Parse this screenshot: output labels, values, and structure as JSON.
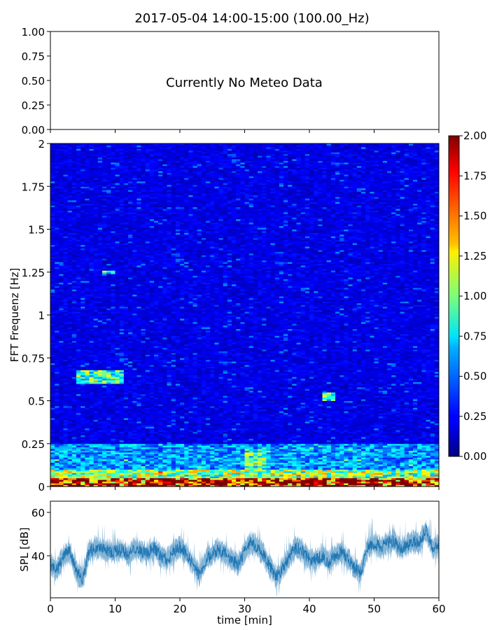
{
  "title": "2017-05-04 14:00-15:00 (100.00_Hz)",
  "chart_data": [
    {
      "type": "line",
      "panel": "meteo",
      "annotation": "Currently No Meteo Data",
      "ylim": [
        0,
        1
      ],
      "yticks": [
        "0.00",
        "0.25",
        "0.50",
        "0.75",
        "1.00"
      ],
      "xlim": [
        0,
        60
      ],
      "series": []
    },
    {
      "type": "heatmap",
      "panel": "spectrogram",
      "ylabel": "FFT Frequenz [Hz]",
      "xlim": [
        0,
        60
      ],
      "ylim": [
        0,
        2
      ],
      "yticks": [
        "0",
        "0.25",
        "0.5",
        "0.75",
        "1",
        "1.25",
        "1.5",
        "1.75",
        "2"
      ],
      "colormap": "jet",
      "colorbar": {
        "range": [
          0,
          2
        ],
        "ticks": [
          "0.00",
          "0.25",
          "0.50",
          "0.75",
          "1.00",
          "1.25",
          "1.50",
          "1.75",
          "2.00"
        ]
      },
      "background_level": 0.2,
      "features": [
        {
          "freq_range": [
            0,
            0.05
          ],
          "level": 1.8
        },
        {
          "freq_range": [
            0.05,
            0.1
          ],
          "level": 1.0
        },
        {
          "freq_range": [
            0.1,
            0.25
          ],
          "level": 0.55
        },
        {
          "time_range": [
            30,
            33
          ],
          "freq_range": [
            0.1,
            0.22
          ],
          "level": 0.9
        },
        {
          "time_range": [
            4,
            11
          ],
          "freq_range": [
            0.6,
            0.68
          ],
          "level": 0.9
        },
        {
          "time_range": [
            42,
            44
          ],
          "freq_range": [
            0.5,
            0.55
          ],
          "level": 0.9
        },
        {
          "time_range": [
            8,
            10
          ],
          "freq_range": [
            1.24,
            1.26
          ],
          "level": 0.7
        }
      ]
    },
    {
      "type": "line",
      "panel": "spl",
      "ylabel": "SPL [dB]",
      "xlabel": "time [min]",
      "xlim": [
        0,
        60
      ],
      "ylim": [
        20,
        66
      ],
      "yticks": [
        "40",
        "60"
      ],
      "xticks": [
        "0",
        "10",
        "20",
        "30",
        "40",
        "50",
        "60"
      ],
      "line_color": "#1f77b4",
      "series": [
        {
          "x": [
            0,
            1,
            2,
            3,
            4,
            5,
            6,
            7,
            8,
            9,
            10,
            11,
            12,
            13,
            14,
            15,
            16,
            17,
            18,
            19,
            20,
            21,
            22,
            23,
            24,
            25,
            26,
            27,
            28,
            29,
            30,
            31,
            32,
            33,
            34,
            35,
            36,
            37,
            38,
            39,
            40,
            41,
            42,
            43,
            44,
            45,
            46,
            47,
            48,
            49,
            50,
            51,
            52,
            53,
            54,
            55,
            56,
            57,
            58,
            59,
            60
          ],
          "y": [
            36,
            33,
            40,
            42,
            32,
            29,
            42,
            44,
            43,
            42,
            42,
            43,
            40,
            44,
            42,
            41,
            44,
            40,
            38,
            42,
            44,
            41,
            36,
            31,
            38,
            41,
            43,
            41,
            38,
            36,
            42,
            46,
            44,
            40,
            34,
            30,
            35,
            40,
            44,
            42,
            38,
            38,
            40,
            37,
            40,
            42,
            38,
            34,
            32,
            44,
            46,
            44,
            46,
            47,
            43,
            45,
            47,
            46,
            52,
            44,
            45
          ]
        }
      ]
    }
  ]
}
